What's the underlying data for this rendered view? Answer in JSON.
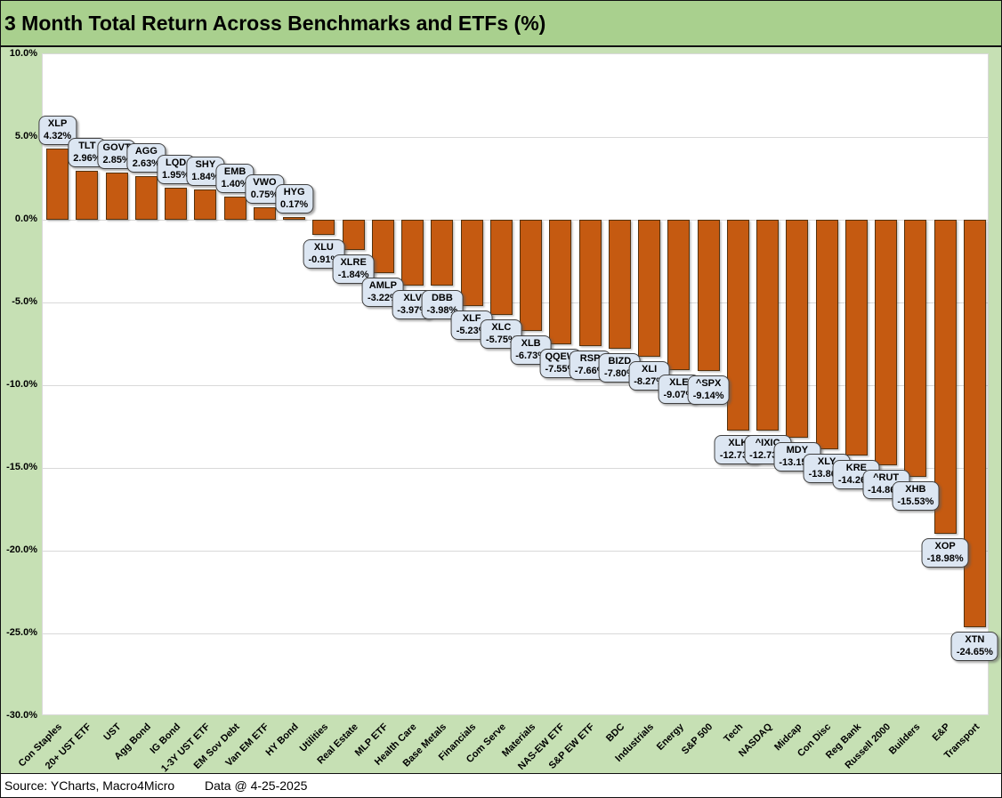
{
  "header": {
    "title": "3 Month Total Return Across Benchmarks and ETFs (%)"
  },
  "footer": {
    "source": "Source: YCharts, Macro4Micro",
    "data_date": "Data @ 4-25-2025"
  },
  "colors": {
    "band_green": "#A9D08E",
    "bg_green": "#C6E0B4",
    "plot_bg": "#FFFFFF",
    "grid": "#D9D9D9",
    "bar_fill": "#C55A11",
    "bar_border": "#55330F",
    "callout_fill": "#DCE6F2",
    "callout_border": "#404040"
  },
  "chart_data": {
    "type": "bar",
    "title": "3 Month Total Return Across Benchmarks and ETFs (%)",
    "xlabel": "",
    "ylabel": "",
    "ylim": [
      -30,
      10
    ],
    "grid": true,
    "legend": "none",
    "yticks": [
      {
        "label": "10.0%",
        "value": 10
      },
      {
        "label": "5.0%",
        "value": 5
      },
      {
        "label": "0.0%",
        "value": 0
      },
      {
        "label": "-5.0%",
        "value": -5
      },
      {
        "label": "-10.0%",
        "value": -10
      },
      {
        "label": "-15.0%",
        "value": -15
      },
      {
        "label": "-20.0%",
        "value": -20
      },
      {
        "label": "-25.0%",
        "value": -25
      },
      {
        "label": "-30.0%",
        "value": -30
      }
    ],
    "points": [
      {
        "category": "Con Staples",
        "ticker": "XLP",
        "value": 4.32,
        "label": "4.32%"
      },
      {
        "category": "20+ UST ETF",
        "ticker": "TLT",
        "value": 2.96,
        "label": "2.96%"
      },
      {
        "category": "UST",
        "ticker": "GOVT",
        "value": 2.85,
        "label": "2.85%"
      },
      {
        "category": "Agg Bond",
        "ticker": "AGG",
        "value": 2.63,
        "label": "2.63%"
      },
      {
        "category": "IG Bond",
        "ticker": "LQD",
        "value": 1.95,
        "label": "1.95%"
      },
      {
        "category": "1-3Y UST ETF",
        "ticker": "SHY",
        "value": 1.84,
        "label": "1.84%"
      },
      {
        "category": "EM Sov Debt",
        "ticker": "EMB",
        "value": 1.4,
        "label": "1.40%"
      },
      {
        "category": "Van EM ETF",
        "ticker": "VWO",
        "value": 0.75,
        "label": "0.75%"
      },
      {
        "category": "HY Bond",
        "ticker": "HYG",
        "value": 0.17,
        "label": "0.17%"
      },
      {
        "category": "Utilities",
        "ticker": "XLU",
        "value": -0.91,
        "label": "-0.91%"
      },
      {
        "category": "Real Estate",
        "ticker": "XLRE",
        "value": -1.84,
        "label": "-1.84%"
      },
      {
        "category": "MLP ETF",
        "ticker": "AMLP",
        "value": -3.22,
        "label": "-3.22%"
      },
      {
        "category": "Health Care",
        "ticker": "XLV",
        "value": -3.97,
        "label": "-3.97%"
      },
      {
        "category": "Base Metals",
        "ticker": "DBB",
        "value": -3.98,
        "label": "-3.98%"
      },
      {
        "category": "Financials",
        "ticker": "XLF",
        "value": -5.23,
        "label": "-5.23%"
      },
      {
        "category": "Com Serve",
        "ticker": "XLC",
        "value": -5.75,
        "label": "-5.75%"
      },
      {
        "category": "Materials",
        "ticker": "XLB",
        "value": -6.73,
        "label": "-6.73%"
      },
      {
        "category": "NAS-EW ETF",
        "ticker": "QQEW",
        "value": -7.55,
        "label": "-7.55%"
      },
      {
        "category": "S&P EW ETF",
        "ticker": "RSP",
        "value": -7.66,
        "label": "-7.66%"
      },
      {
        "category": "BDC",
        "ticker": "BIZD",
        "value": -7.8,
        "label": "-7.80%"
      },
      {
        "category": "Industrials",
        "ticker": "XLI",
        "value": -8.27,
        "label": "-8.27%"
      },
      {
        "category": "Energy",
        "ticker": "XLE",
        "value": -9.07,
        "label": "-9.07%"
      },
      {
        "category": "S&P 500",
        "ticker": "^SPX",
        "value": -9.14,
        "label": "-9.14%"
      },
      {
        "category": "Tech",
        "ticker": "XLK",
        "value": -12.73,
        "label": "-12.73%"
      },
      {
        "category": "NASDAQ",
        "ticker": "^IXIC",
        "value": -12.73,
        "label": "-12.73%"
      },
      {
        "category": "Midcap",
        "ticker": "MDY",
        "value": -13.15,
        "label": "-13.15%"
      },
      {
        "category": "Con Disc",
        "ticker": "XLY",
        "value": -13.86,
        "label": "-13.86%"
      },
      {
        "category": "Reg Bank",
        "ticker": "KRE",
        "value": -14.26,
        "label": "-14.26%"
      },
      {
        "category": "Russell 2000",
        "ticker": "^RUT",
        "value": -14.86,
        "label": "-14.86%"
      },
      {
        "category": "Builders",
        "ticker": "XHB",
        "value": -15.53,
        "label": "-15.53%"
      },
      {
        "category": "E&P",
        "ticker": "XOP",
        "value": -18.98,
        "label": "-18.98%"
      },
      {
        "category": "Transport",
        "ticker": "XTN",
        "value": -24.65,
        "label": "-24.65%"
      }
    ]
  }
}
